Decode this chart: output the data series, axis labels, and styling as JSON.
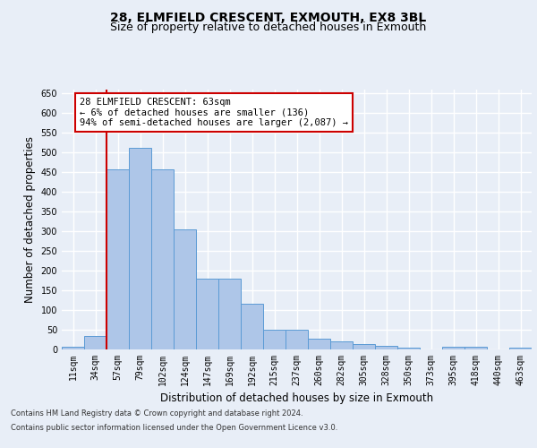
{
  "title_line1": "28, ELMFIELD CRESCENT, EXMOUTH, EX8 3BL",
  "title_line2": "Size of property relative to detached houses in Exmouth",
  "xlabel": "Distribution of detached houses by size in Exmouth",
  "ylabel": "Number of detached properties",
  "categories": [
    "11sqm",
    "34sqm",
    "57sqm",
    "79sqm",
    "102sqm",
    "124sqm",
    "147sqm",
    "169sqm",
    "192sqm",
    "215sqm",
    "237sqm",
    "260sqm",
    "282sqm",
    "305sqm",
    "328sqm",
    "350sqm",
    "373sqm",
    "395sqm",
    "418sqm",
    "440sqm",
    "463sqm"
  ],
  "values": [
    7,
    35,
    457,
    513,
    457,
    305,
    180,
    180,
    117,
    50,
    50,
    27,
    20,
    14,
    9,
    5,
    0,
    7,
    7,
    0,
    5
  ],
  "bar_color": "#aec6e8",
  "bar_edge_color": "#5b9bd5",
  "red_line_index": 2,
  "annotation_text": "28 ELMFIELD CRESCENT: 63sqm\n← 6% of detached houses are smaller (136)\n94% of semi-detached houses are larger (2,087) →",
  "annotation_box_color": "#ffffff",
  "annotation_box_edge": "#cc0000",
  "red_line_color": "#cc0000",
  "ylim": [
    0,
    660
  ],
  "yticks": [
    0,
    50,
    100,
    150,
    200,
    250,
    300,
    350,
    400,
    450,
    500,
    550,
    600,
    650
  ],
  "footer1": "Contains HM Land Registry data © Crown copyright and database right 2024.",
  "footer2": "Contains public sector information licensed under the Open Government Licence v3.0.",
  "background_color": "#e8eef7",
  "plot_bg_color": "#e8eef7",
  "grid_color": "#ffffff",
  "title_fontsize": 10,
  "subtitle_fontsize": 9,
  "axis_label_fontsize": 8.5,
  "tick_fontsize": 7,
  "annotation_fontsize": 7.5,
  "footer_fontsize": 6
}
